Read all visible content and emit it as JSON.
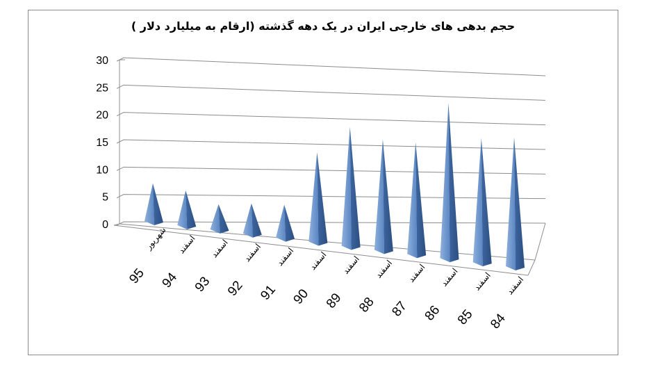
{
  "chart_data": {
    "type": "bar",
    "style": "3d-pyramid",
    "title": "حجم بدهی های خارجی ایران در یک دهه گذشته (ارقام به میلیارد دلار )",
    "xlabel": "",
    "ylabel": "",
    "ylim": [
      0,
      30
    ],
    "yticks": [
      "0",
      "5",
      "10",
      "15",
      "20",
      "25",
      "30"
    ],
    "grid": true,
    "legend": "none",
    "bar_color": "#4F81BD",
    "categories": [
      {
        "number": "95",
        "word": "شهریور"
      },
      {
        "number": "94",
        "word": "اسفند"
      },
      {
        "number": "93",
        "word": "اسفند"
      },
      {
        "number": "92",
        "word": "اسفند"
      },
      {
        "number": "91",
        "word": "اسفند"
      },
      {
        "number": "90",
        "word": "اسفند"
      },
      {
        "number": "89",
        "word": "اسفند"
      },
      {
        "number": "88",
        "word": "اسفند"
      },
      {
        "number": "87",
        "word": "اسفند"
      },
      {
        "number": "86",
        "word": "اسفند"
      },
      {
        "number": "85",
        "word": "اسفند"
      },
      {
        "number": "84",
        "word": "اسفند"
      }
    ],
    "values": [
      7.5,
      7.0,
      5.2,
      6.2,
      6.8,
      18.0,
      24.0,
      22.5,
      23.0,
      32.0,
      26.0,
      27.2
    ]
  }
}
